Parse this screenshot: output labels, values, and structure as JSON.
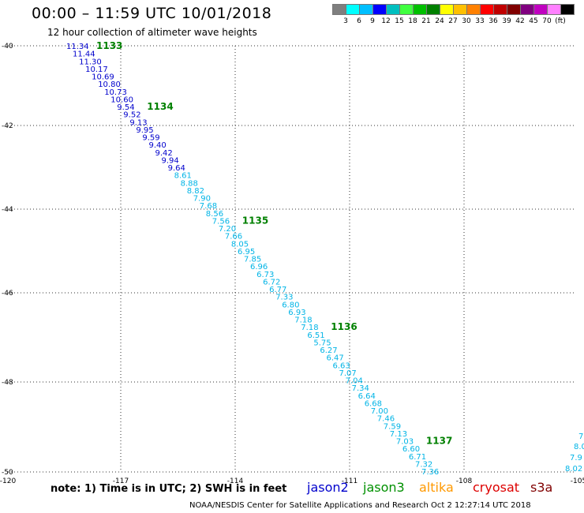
{
  "header": {
    "title": "00:00 – 11:59 UTC 10/01/2018",
    "subtitle": "12 hour collection of altimeter wave heights"
  },
  "color_scale": {
    "colors": [
      "#7f7f7f",
      "#00ffff",
      "#00bfff",
      "#0000ff",
      "#00bfbf",
      "#40ff40",
      "#00c000",
      "#008000",
      "#ffff00",
      "#ffc000",
      "#ff8000",
      "#ff0000",
      "#c00000",
      "#800000",
      "#800080",
      "#c000c0",
      "#ff80ff",
      "#000000"
    ],
    "labels": [
      "3",
      "6",
      "9",
      "12",
      "15",
      "18",
      "21",
      "24",
      "27",
      "30",
      "33",
      "36",
      "39",
      "42",
      "45",
      "70",
      "(ft)"
    ]
  },
  "map": {
    "lat_labels": [
      "-40",
      "-42",
      "-44",
      "-46",
      "-48",
      "-50"
    ],
    "lon_labels": [
      "-120",
      "-117",
      "-114",
      "-111",
      "-108",
      "-105"
    ],
    "orbits": [
      "1133",
      "1134",
      "1135",
      "1136",
      "1137"
    ],
    "track_main": [
      "11.34",
      "11.44",
      "11.30",
      "10.17",
      "10.69",
      "10.80",
      "10.73",
      "10.60",
      "9.54",
      "9.52",
      "9.13",
      "9.95",
      "9.59",
      "9.40",
      "9.42",
      "9.94",
      "9.64",
      "8.61",
      "8.88",
      "8.82",
      "7.90",
      "7.68",
      "8.56",
      "7.56",
      "7.20",
      "7.66",
      "8.05",
      "6.95",
      "7.85",
      "6.96",
      "6.73",
      "6.72",
      "6.77",
      "7.33",
      "6.80",
      "6.93",
      "7.18",
      "7.18",
      "6.51",
      "5.75",
      "6.27",
      "6.47",
      "6.63",
      "7.07",
      "7.04",
      "7.34",
      "6.64",
      "6.68",
      "7.00",
      "7.46",
      "7.59",
      "7.13",
      "7.03",
      "6.60",
      "6.71",
      "7.32",
      "7.36"
    ],
    "track_edge": [
      "7.",
      "8.0",
      "7.9",
      "8.02"
    ]
  },
  "footer": {
    "note": "note:  1) Time is in UTC;  2) SWH is in feet",
    "satellites": [
      {
        "name": "jason2",
        "color": "#0000cc"
      },
      {
        "name": "jason3",
        "color": "#009000"
      },
      {
        "name": "altika",
        "color": "#ff9900"
      },
      {
        "name": "cryosat",
        "color": "#dd0000"
      },
      {
        "name": "s3a",
        "color": "#800000"
      }
    ],
    "credit": "NOAA/NESDIS Center for Satellite Applications and Research    Oct  2 12:27:14 UTC 2018"
  }
}
